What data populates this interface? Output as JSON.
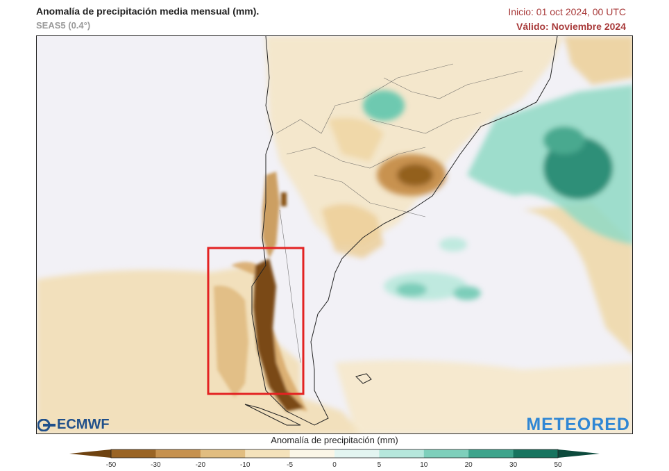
{
  "header": {
    "title": "Anomalía de precipitación media mensual (mm).",
    "model": "SEAS5 (0.4°)",
    "init": "Inicio: 01 oct 2024, 00 UTC",
    "valid": "Válido: Noviembre 2024"
  },
  "map": {
    "region": "South America (Southern Cone)",
    "highlight_box_color": "#e32222",
    "highlight_label": "",
    "anomaly_colors": {
      "dry_strong": "#7a4a10",
      "dry": "#c59048",
      "dry_light": "#f2dfb4",
      "neutral": "#f2f1f6",
      "wet_light": "#c8eee6",
      "wet": "#5cc3a8",
      "wet_strong": "#1f7d6a"
    }
  },
  "logos": {
    "left": "ECMWF",
    "right": "METEORED"
  },
  "colorbar": {
    "title": "Anomalía de precipitación (mm)",
    "ticks": [
      "-50",
      "-30",
      "-20",
      "-10",
      "-5",
      "0",
      "5",
      "10",
      "20",
      "30",
      "50"
    ],
    "colors": [
      "#6e4210",
      "#9a6424",
      "#c6914e",
      "#e1bd80",
      "#f4e2bb",
      "#fbf6e7",
      "#e3f5f1",
      "#b6e7dc",
      "#7ecfbb",
      "#3ea48c",
      "#17745f",
      "#0c4a3c"
    ]
  }
}
